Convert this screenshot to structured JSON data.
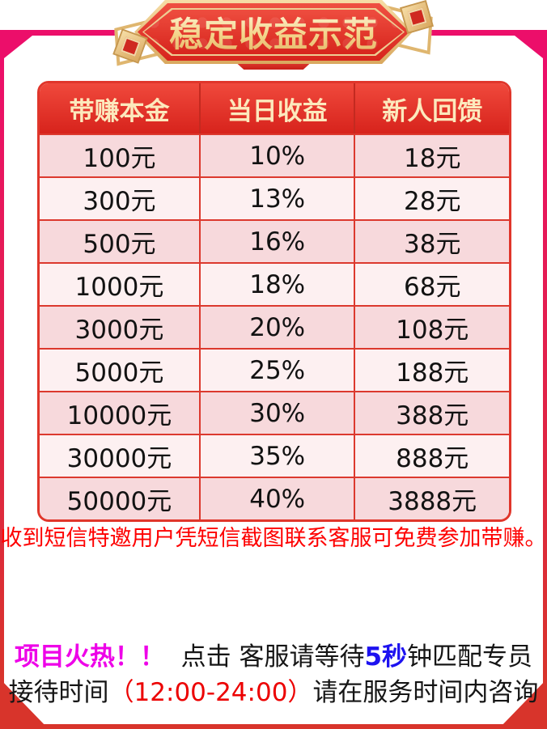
{
  "banner": {
    "title": "稳定收益示范"
  },
  "table": {
    "headers": [
      "带赚本金",
      "当日收益",
      "新人回馈"
    ],
    "rows": [
      [
        "100元",
        "10%",
        "18元"
      ],
      [
        "300元",
        "13%",
        "28元"
      ],
      [
        "500元",
        "16%",
        "38元"
      ],
      [
        "1000元",
        "18%",
        "68元"
      ],
      [
        "3000元",
        "20%",
        "108元"
      ],
      [
        "5000元",
        "25%",
        "188元"
      ],
      [
        "10000元",
        "30%",
        "388元"
      ],
      [
        "30000元",
        "35%",
        "888元"
      ],
      [
        "50000元",
        "40%",
        "3888元"
      ]
    ]
  },
  "notice": "收到短信特邀用户凭短信截图联系客服可免费参加带赚。",
  "footer": {
    "line1": [
      {
        "style": "magenta",
        "text": "项目火热！！"
      },
      {
        "style": "black",
        "text": "  点击 客服请等待"
      },
      {
        "style": "blue",
        "text": "5秒"
      },
      {
        "style": "black",
        "text": "钟匹配专员"
      }
    ],
    "line2": [
      {
        "style": "black",
        "text": "接待时间"
      },
      {
        "style": "red",
        "text": "（12:00-24:00）"
      },
      {
        "style": "black",
        "text": "请在服务时间内咨询"
      }
    ]
  },
  "colors": {
    "frame_pink": "#ec0e6a",
    "frame_red": "#d8342b",
    "banner_red": "#d7251d",
    "banner_gold": "#e9c27c",
    "header_text_gold": "#fce9bd",
    "row_pink_dark": "#f7d9dc",
    "row_pink_light": "#fdf0f1",
    "cell_border_red": "#dc392e",
    "notice_red": "#fe0000",
    "hot_magenta": "#ee00e8",
    "seconds_blue": "#1d12f0",
    "time_red": "#ec0000"
  }
}
